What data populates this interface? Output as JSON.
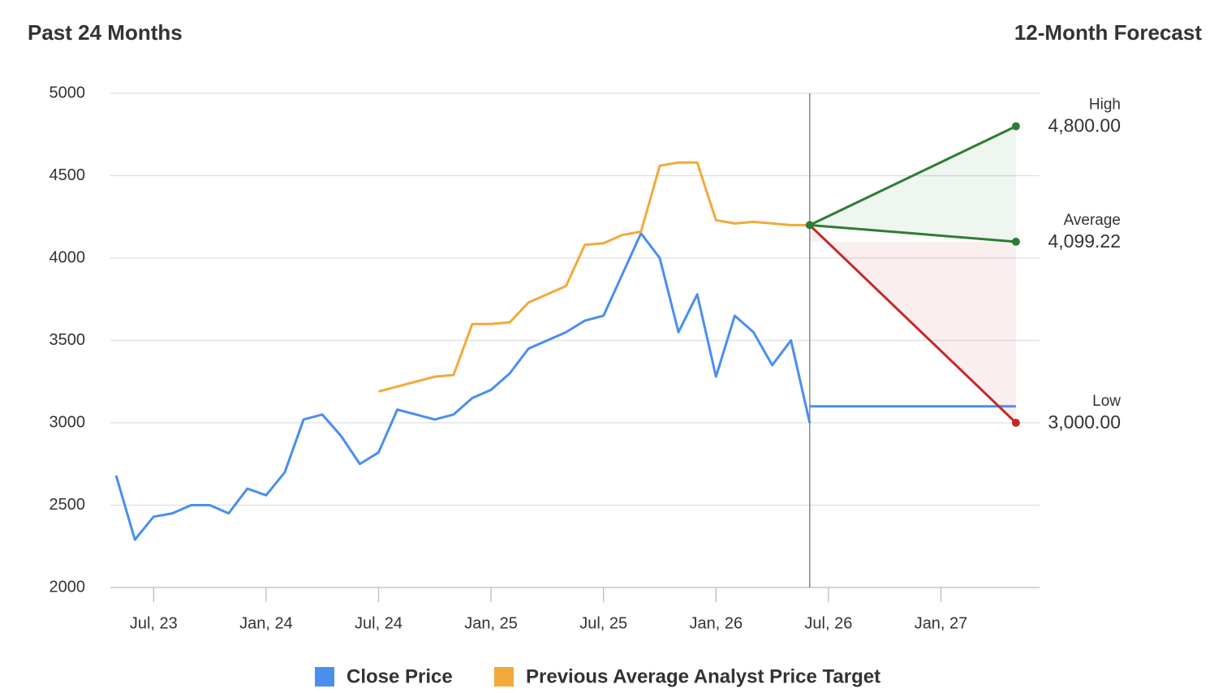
{
  "chart_data": {
    "type": "line",
    "title": "Past 24 Months",
    "forecast_title": "12-Month Forecast",
    "x": [
      "2023-05",
      "2023-06",
      "2023-07",
      "2023-08",
      "2023-09",
      "2023-10",
      "2023-11",
      "2023-12",
      "2024-01",
      "2024-02",
      "2024-03",
      "2024-04",
      "2024-05",
      "2024-06",
      "2024-07",
      "2024-08",
      "2024-09",
      "2024-10",
      "2024-11",
      "2024-12",
      "2025-01",
      "2025-02",
      "2025-03",
      "2025-04",
      "2025-05",
      "2025-06",
      "2025-07",
      "2025-08",
      "2025-09",
      "2025-10",
      "2025-11",
      "2025-12",
      "2026-01",
      "2026-02",
      "2026-03",
      "2026-04",
      "2026-05",
      "2026-06"
    ],
    "series": [
      {
        "name": "Close Price",
        "color": "#4a8ef0",
        "values": [
          2680,
          2290,
          2430,
          2450,
          2500,
          2500,
          2450,
          2600,
          2560,
          2700,
          3020,
          3050,
          2920,
          2750,
          2820,
          3080,
          3050,
          3020,
          3050,
          3150,
          3200,
          3300,
          3450,
          3500,
          3550,
          3620,
          3650,
          3900,
          4150,
          4000,
          3550,
          3780,
          3280,
          3650,
          3550,
          3350,
          3500,
          3000
        ]
      },
      {
        "name": "Previous Average Analyst Price Target",
        "color": "#f2a93b",
        "values": [
          null,
          null,
          null,
          null,
          null,
          null,
          null,
          null,
          null,
          null,
          null,
          null,
          null,
          null,
          3190,
          3220,
          3250,
          3280,
          3290,
          3600,
          3600,
          3610,
          3730,
          3780,
          3830,
          4080,
          4090,
          4140,
          4160,
          4560,
          4580,
          4580,
          4230,
          4210,
          4220,
          4210,
          4200,
          4200
        ]
      }
    ],
    "forecast": {
      "start_x": "2026-06",
      "end_x": "2027-05",
      "start_value": 4200,
      "current": 3100,
      "high": {
        "label": "High",
        "value": 4800,
        "value_label": "4,800.00",
        "color": "#2e7d32"
      },
      "average": {
        "label": "Average",
        "value": 4099.22,
        "value_label": "4,099.22",
        "color": "#2e7d32"
      },
      "low": {
        "label": "Low",
        "value": 3000,
        "value_label": "3,000.00",
        "color": "#c62828"
      }
    },
    "xlim": [
      "2023-04",
      "2027-06"
    ],
    "xticks": [
      {
        "value": "2023-07",
        "label": "Jul, 23"
      },
      {
        "value": "2024-01",
        "label": "Jan, 24"
      },
      {
        "value": "2024-07",
        "label": "Jul, 24"
      },
      {
        "value": "2025-01",
        "label": "Jan, 25"
      },
      {
        "value": "2025-07",
        "label": "Jul, 25"
      },
      {
        "value": "2026-01",
        "label": "Jan, 26"
      },
      {
        "value": "2026-07",
        "label": "Jul, 26"
      },
      {
        "value": "2027-01",
        "label": "Jan, 27"
      }
    ],
    "ylim": [
      2000,
      5000
    ],
    "yticks": [
      2000,
      2500,
      3000,
      3500,
      4000,
      4500,
      5000
    ],
    "grid": true
  }
}
